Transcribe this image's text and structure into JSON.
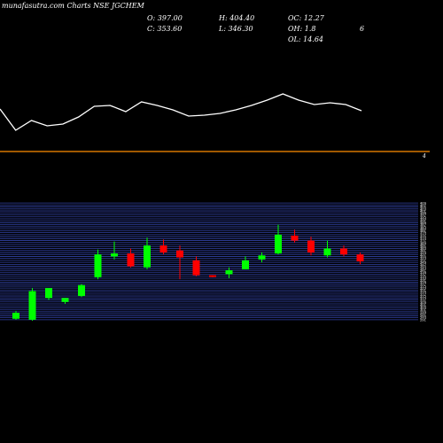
{
  "header": {
    "watermark": "munafasutra.com",
    "title": "Charts NSE JGCHEM",
    "open_label": "O: 397.00",
    "close_label": "C: 353.60",
    "high_label": "H: 404.40",
    "low_label": "L: 346.30",
    "oc_label": "OC: 12.27",
    "oh_label": "OH: 1.8",
    "ol_label": "OL: 14.64",
    "extra_label": "6"
  },
  "separator": {
    "marker": "4",
    "color": "#ff8c00"
  },
  "colors": {
    "up": "#00ff00",
    "down": "#ff0000",
    "line": "#ffffff",
    "grid": "#3344aa",
    "background": "#000000"
  },
  "chart_data": [
    {
      "type": "line",
      "title": "",
      "description_series": "upper line indicator",
      "values": [
        123,
        147,
        136,
        142,
        140,
        132,
        120,
        119,
        126,
        115,
        119,
        124,
        131,
        130,
        128,
        124,
        119,
        113,
        106,
        113,
        118,
        116,
        118,
        125
      ],
      "ylim": [
        100,
        160
      ]
    },
    {
      "type": "candlestick",
      "title": "",
      "ylim": [
        290,
        410
      ],
      "price_ticks": [
        "409",
        "407",
        "405",
        "403",
        "401",
        "399",
        "397",
        "395",
        "393",
        "391",
        "389",
        "387",
        "385",
        "383",
        "381",
        "379",
        "377",
        "375",
        "373",
        "371",
        "369",
        "367",
        "365",
        "363",
        "361",
        "359",
        "357",
        "355",
        "353",
        "351",
        "349",
        "347",
        "345",
        "343",
        "341",
        "339",
        "337",
        "335",
        "333",
        "331",
        "329",
        "327",
        "325",
        "323",
        "321",
        "319",
        "317",
        "315",
        "313",
        "311",
        "309",
        "307",
        "305",
        "303",
        "301",
        "299",
        "297",
        "295",
        "293",
        "291"
      ],
      "candles": [
        {
          "open": 292,
          "high": 300,
          "low": 291,
          "close": 298
        },
        {
          "open": 291,
          "high": 323,
          "low": 290,
          "close": 320
        },
        {
          "open": 313,
          "high": 323,
          "low": 311,
          "close": 323
        },
        {
          "open": 309,
          "high": 313,
          "low": 307,
          "close": 313
        },
        {
          "open": 315,
          "high": 327,
          "low": 314,
          "close": 326
        },
        {
          "open": 334,
          "high": 362,
          "low": 332,
          "close": 357
        },
        {
          "open": 355,
          "high": 370,
          "low": 352,
          "close": 358
        },
        {
          "open": 358,
          "high": 363,
          "low": 344,
          "close": 345
        },
        {
          "open": 344,
          "high": 374,
          "low": 342,
          "close": 366
        },
        {
          "open": 366,
          "high": 372,
          "low": 357,
          "close": 359
        },
        {
          "open": 361,
          "high": 366,
          "low": 332,
          "close": 354
        },
        {
          "open": 351,
          "high": 355,
          "low": 335,
          "close": 336
        },
        {
          "open": 336,
          "high": 336,
          "low": 334,
          "close": 335
        },
        {
          "open": 337,
          "high": 344,
          "low": 333,
          "close": 341
        },
        {
          "open": 342,
          "high": 355,
          "low": 342,
          "close": 351
        },
        {
          "open": 352,
          "high": 359,
          "low": 349,
          "close": 356
        },
        {
          "open": 358,
          "high": 387,
          "low": 357,
          "close": 377
        },
        {
          "open": 376,
          "high": 382,
          "low": 369,
          "close": 371
        },
        {
          "open": 371,
          "high": 375,
          "low": 356,
          "close": 359
        },
        {
          "open": 356,
          "high": 371,
          "low": 354,
          "close": 363
        },
        {
          "open": 363,
          "high": 366,
          "low": 355,
          "close": 357
        },
        {
          "open": 357,
          "high": 359,
          "low": 347,
          "close": 350
        }
      ]
    }
  ]
}
